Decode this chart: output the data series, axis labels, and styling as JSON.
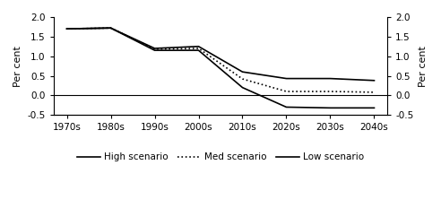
{
  "decades": [
    "1970s",
    "1980s",
    "1990s",
    "2000s",
    "2010s",
    "2020s",
    "2030s",
    "2040s"
  ],
  "x": [
    0,
    1,
    2,
    3,
    4,
    5,
    6,
    7
  ],
  "high": [
    1.7,
    1.72,
    1.2,
    1.25,
    0.6,
    0.43,
    0.43,
    0.38
  ],
  "med": [
    1.7,
    1.72,
    1.18,
    1.2,
    0.42,
    0.1,
    0.1,
    0.08
  ],
  "low": [
    1.7,
    1.72,
    1.15,
    1.15,
    0.2,
    -0.3,
    -0.32,
    -0.32
  ],
  "ylim": [
    -0.5,
    2.0
  ],
  "yticks": [
    -0.5,
    0.0,
    0.5,
    1.0,
    1.5,
    2.0
  ],
  "ylabel_left": "Per cent",
  "ylabel_right": "Per cent",
  "legend_high": "High scenario",
  "legend_med": "Med scenario",
  "legend_low": "Low scenario",
  "line_color": "#000000",
  "bg_color": "#ffffff"
}
